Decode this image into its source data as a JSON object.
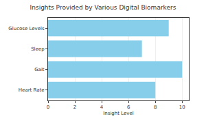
{
  "chart_data": {
    "type": "bar",
    "title": "Insights Provided by Various Digital Biomarkers",
    "orientation": "horizontal",
    "categories": [
      "Heart Rate",
      "Gait",
      "Sleep",
      "Glucose Levels"
    ],
    "values": [
      8,
      10,
      7,
      9
    ],
    "color": "#87ceeb",
    "xlabel": "Insight Level",
    "xlim": [
      0,
      10.5
    ],
    "xticks": [
      0,
      2,
      4,
      6,
      8,
      10
    ],
    "grid": true
  }
}
